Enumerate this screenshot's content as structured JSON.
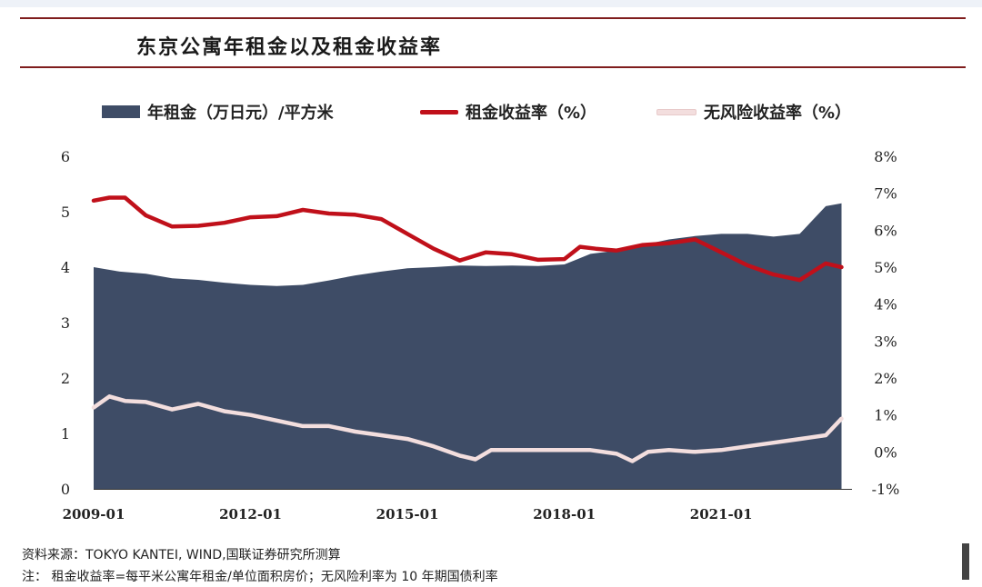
{
  "title": "东京公寓年租金以及租金收益率",
  "legend": {
    "area_label": "年租金（万日元）/平方米",
    "rent_yield_label": "租金收益率（%）",
    "riskfree_label": "无风险收益率（%）"
  },
  "colors": {
    "area": "#3e4c66",
    "rent_yield": "#c0101a",
    "riskfree": "#f3dede",
    "rule": "#7f1d1d"
  },
  "footer": {
    "source": "资料来源：TOKYO KANTEI, WIND,国联证券研究所测算",
    "note": "注：  租金收益率=每平米公寓年租金/单位面积房价；无风险利率为 10 年期国债利率"
  },
  "chart_data": {
    "type": "area",
    "title": "东京公寓年租金以及租金收益率",
    "x_tick_labels": [
      "2009-01",
      "2012-01",
      "2015-01",
      "2018-01",
      "2021-01"
    ],
    "y_left": {
      "ticks": [
        "0",
        "1",
        "2",
        "3",
        "4",
        "5",
        "6"
      ],
      "range": [
        0,
        6
      ]
    },
    "y_right": {
      "ticks": [
        "-1%",
        "0%",
        "1%",
        "2%",
        "3%",
        "4%",
        "5%",
        "6%",
        "7%",
        "8%"
      ],
      "range": [
        -1,
        8
      ]
    },
    "grid": false,
    "legend_position": "top",
    "x_range": [
      2009.0,
      2023.5
    ],
    "series": [
      {
        "name": "年租金（万日元）/平方米",
        "type": "area",
        "axis": "left",
        "x": [
          2009.0,
          2009.5,
          2010.0,
          2010.5,
          2011.0,
          2011.5,
          2012.0,
          2012.5,
          2013.0,
          2013.5,
          2014.0,
          2014.5,
          2015.0,
          2015.5,
          2016.0,
          2016.5,
          2017.0,
          2017.5,
          2018.0,
          2018.5,
          2019.0,
          2019.5,
          2020.0,
          2020.5,
          2021.0,
          2021.5,
          2022.0,
          2022.5,
          2023.0,
          2023.3
        ],
        "values": [
          4.0,
          3.92,
          3.88,
          3.8,
          3.77,
          3.72,
          3.68,
          3.66,
          3.68,
          3.76,
          3.85,
          3.92,
          3.98,
          4.0,
          4.03,
          4.02,
          4.03,
          4.02,
          4.05,
          4.24,
          4.3,
          4.4,
          4.5,
          4.56,
          4.6,
          4.6,
          4.55,
          4.6,
          5.1,
          5.15
        ]
      },
      {
        "name": "租金收益率（%）",
        "type": "line",
        "axis": "right",
        "x": [
          2009.0,
          2009.3,
          2009.6,
          2010.0,
          2010.5,
          2011.0,
          2011.5,
          2012.0,
          2012.5,
          2013.0,
          2013.5,
          2014.0,
          2014.5,
          2015.0,
          2015.5,
          2016.0,
          2016.5,
          2017.0,
          2017.5,
          2018.0,
          2018.3,
          2018.6,
          2019.0,
          2019.5,
          2020.0,
          2020.5,
          2021.0,
          2021.5,
          2022.0,
          2022.5,
          2023.0,
          2023.3
        ],
        "values": [
          6.8,
          6.88,
          6.88,
          6.4,
          6.1,
          6.12,
          6.2,
          6.35,
          6.38,
          6.55,
          6.45,
          6.42,
          6.3,
          5.9,
          5.5,
          5.18,
          5.4,
          5.35,
          5.2,
          5.22,
          5.55,
          5.5,
          5.45,
          5.6,
          5.65,
          5.75,
          5.4,
          5.05,
          4.8,
          4.65,
          5.1,
          5.0
        ]
      },
      {
        "name": "无风险收益率（%）",
        "type": "line",
        "axis": "right",
        "x": [
          2009.0,
          2009.3,
          2009.6,
          2010.0,
          2010.5,
          2011.0,
          2011.5,
          2012.0,
          2012.5,
          2013.0,
          2013.5,
          2014.0,
          2014.5,
          2015.0,
          2015.5,
          2016.0,
          2016.3,
          2016.6,
          2017.0,
          2017.5,
          2018.0,
          2018.5,
          2019.0,
          2019.3,
          2019.6,
          2020.0,
          2020.5,
          2021.0,
          2021.5,
          2022.0,
          2022.5,
          2023.0,
          2023.3
        ],
        "values": [
          1.2,
          1.5,
          1.38,
          1.35,
          1.15,
          1.3,
          1.1,
          1.0,
          0.85,
          0.7,
          0.7,
          0.55,
          0.45,
          0.35,
          0.15,
          -0.1,
          -0.2,
          0.05,
          0.05,
          0.05,
          0.05,
          0.05,
          -0.05,
          -0.25,
          0.0,
          0.05,
          0.0,
          0.05,
          0.15,
          0.25,
          0.35,
          0.45,
          0.9
        ]
      }
    ]
  }
}
